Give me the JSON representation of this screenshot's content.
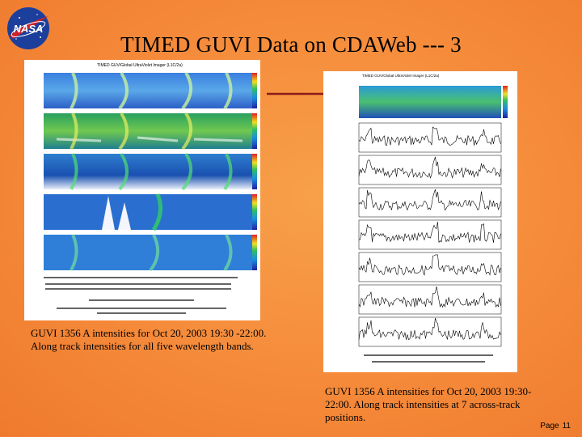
{
  "slide": {
    "title": "TIMED GUVI Data on CDAWeb --- 3",
    "logo_text": "NASA",
    "page_label": "Page",
    "page_number": "11",
    "colors": {
      "background": "#f58a3a",
      "arrow": "#8b1a1a",
      "logo_blue": "#1b3f9b",
      "logo_red": "#d0202a"
    }
  },
  "left_figure": {
    "header": "TIMED  GUV/Global UltraViolet Imager  (L1C/2a)",
    "panel_count": 5,
    "caption": "GUVI 1356 A intensities for Oct 20, 2003 19:30 -22:00. Along track intensities for all five wavelength bands."
  },
  "right_figure": {
    "header": "TIMED  GUV/Global UltraViolet Imager  (L1C/2a)",
    "trace_count": 7,
    "caption": "GUVI 1356 A intensities for Oct 20, 2003 19:30-22:00.  Along track intensities at 7 across-track positions."
  }
}
